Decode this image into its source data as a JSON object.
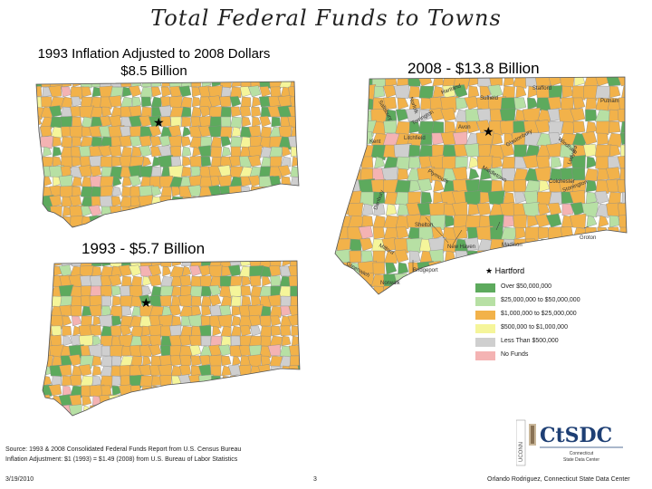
{
  "title": "Total Federal Funds to Towns",
  "subtitle_1993_adjusted": "1993 Inflation Adjusted to 2008 Dollars",
  "subtitle_1993_adjusted_value": "$8.5 Billion",
  "subtitle_2008": "2008 - $13.8 Billion",
  "subtitle_1993": "1993 - $5.7 Billion",
  "hartford_marker_label": "Hartford",
  "legend": [
    {
      "label": "Over $50,000,000",
      "color": "#5daa5d"
    },
    {
      "label": "$25,000,000 to $50,000,000",
      "color": "#b7e0a4"
    },
    {
      "label": "$1,000,000 to $25,000,000",
      "color": "#f2b24a"
    },
    {
      "label": "$500,000 to $1,000,000",
      "color": "#f5f59a"
    },
    {
      "label": "Less Than $500,000",
      "color": "#cfcfcf"
    },
    {
      "label": "No Funds",
      "color": "#f4b3b3"
    }
  ],
  "town_labels": [
    "Suffield",
    "Stafford",
    "Putnam",
    "Avon",
    "Litchfield",
    "Kent",
    "Colchester",
    "Shelton",
    "Madison",
    "Groton",
    "New Haven",
    "Bridgeport",
    "Norwalk"
  ],
  "rotated_labels": [
    "Salisbury",
    "Norfolk",
    "Hartland",
    "Torrington",
    "Glastonbury",
    "Plymouth",
    "Middletown",
    "Danbury",
    "Milford",
    "Greenwich",
    "Windham",
    "Ledyard",
    "Stonington"
  ],
  "source_line_1": "Source: 1993 & 2008 Consolidated Federal Funds Report from U.S. Census Bureau",
  "source_line_2": "Inflation Adjustment:  $1 (1993) = $1.49 (2008) from U.S. Bureau of Labor Statistics",
  "footer_date": "3/19/2010",
  "footer_page": "3",
  "footer_author": "Orlando Rodriguez, Connecticut State Data Center",
  "logo_text": "CtSDC",
  "logo_sub_1": "Connecticut",
  "logo_sub_2": "State Data Center",
  "logo_vertical": "UCONN"
}
